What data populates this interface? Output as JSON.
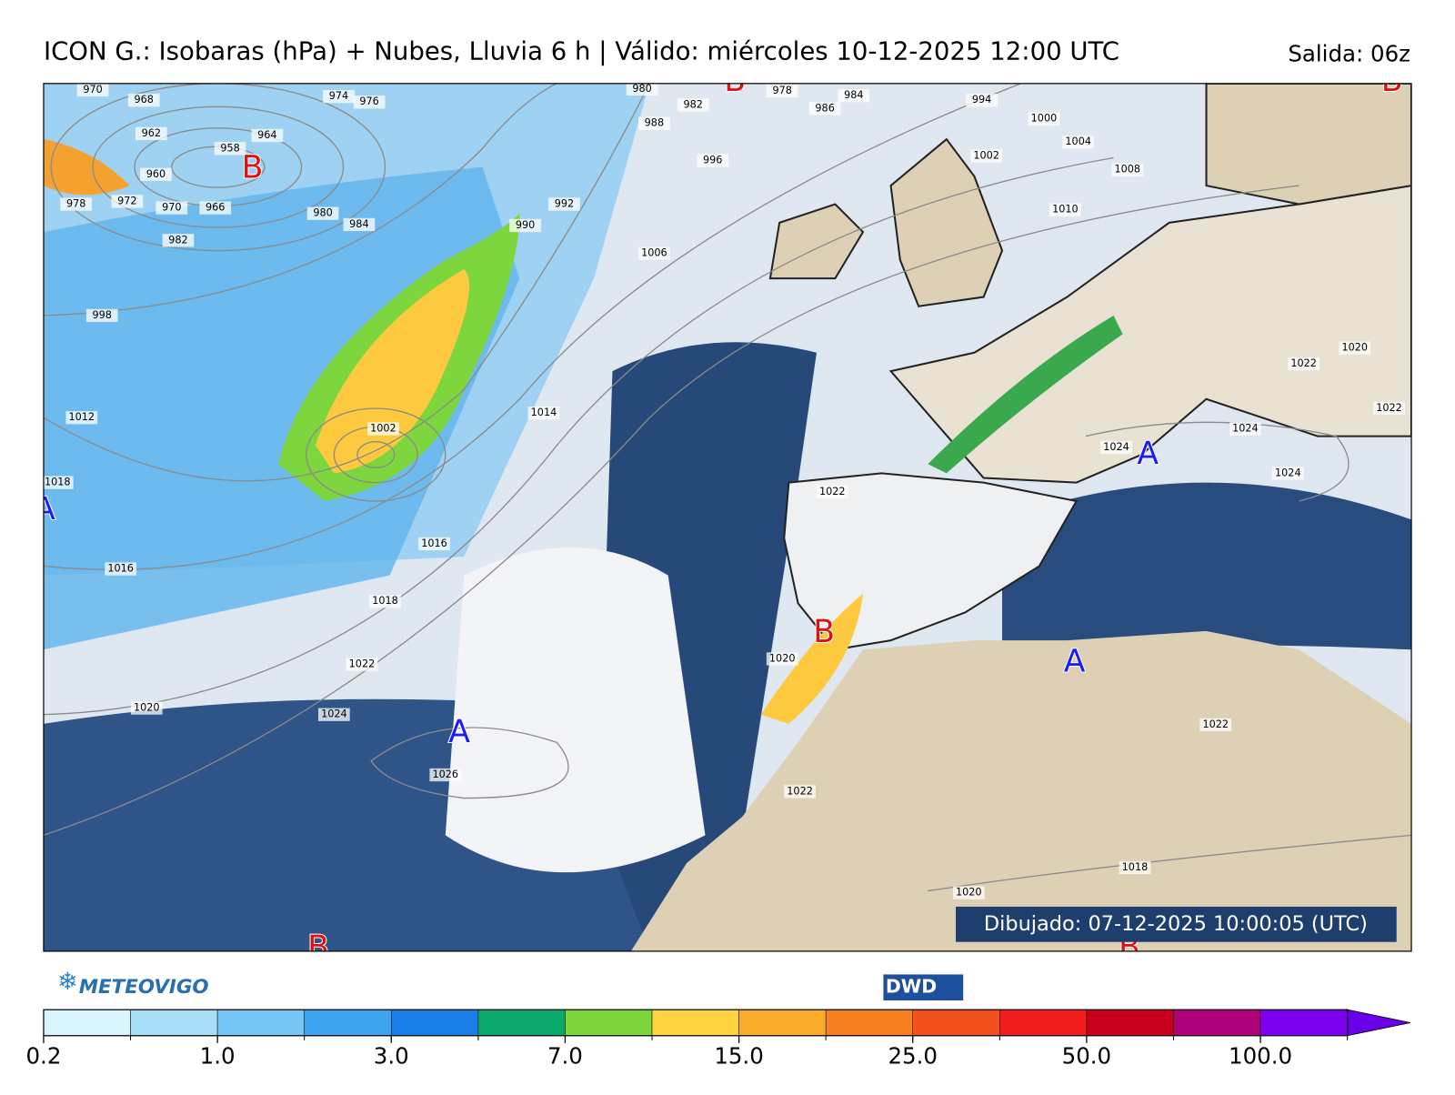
{
  "header": {
    "title": "ICON G.: Isobaras (hPa) + Nubes, Lluvia 6 h | Válido: miércoles 10-12-2025 12:00 UTC",
    "run": "Salida: 06z"
  },
  "drawn": "Dibujado: 07-12-2025 10:00:05 (UTC)",
  "logos": {
    "meteovigo": "METEOVIGO",
    "dwd": "DWD"
  },
  "map": {
    "pressure_centers": [
      "B",
      "B",
      "B",
      "A",
      "B",
      "A",
      "A",
      "A",
      "B",
      "B"
    ],
    "isobar_labels": [
      970,
      968,
      974,
      976,
      962,
      964,
      958,
      960,
      978,
      972,
      970,
      966,
      982,
      980,
      984,
      990,
      992,
      980,
      982,
      978,
      984,
      986,
      988,
      994,
      1000,
      1004,
      1002,
      996,
      1008,
      1010,
      1006,
      998,
      1012,
      1014,
      1002,
      1018,
      1016,
      1016,
      1018,
      1022,
      1020,
      1024,
      1026,
      1020,
      1022,
      1022,
      1024,
      1024,
      1024,
      1022,
      1020,
      1022,
      1022,
      1018,
      1020
    ]
  },
  "colorbar": {
    "colors": [
      "#d8f4fd",
      "#a9def8",
      "#76c5f5",
      "#3fa4f0",
      "#1a7fe8",
      "#0aa86a",
      "#7dd63d",
      "#fdd440",
      "#fbab2a",
      "#f6801f",
      "#f2501c",
      "#f21d1d",
      "#c8001c",
      "#b0007a",
      "#7e00f0",
      "#6a00e8"
    ],
    "ticks": [
      {
        "value": 0.2,
        "label": "0.2"
      },
      {
        "value": 1.0,
        "label": "1.0"
      },
      {
        "value": 3.0,
        "label": "3.0"
      },
      {
        "value": 7.0,
        "label": "7.0"
      },
      {
        "value": 15.0,
        "label": "15.0"
      },
      {
        "value": 25.0,
        "label": "25.0"
      },
      {
        "value": 50.0,
        "label": "50.0"
      },
      {
        "value": 100.0,
        "label": "100.0"
      }
    ]
  }
}
